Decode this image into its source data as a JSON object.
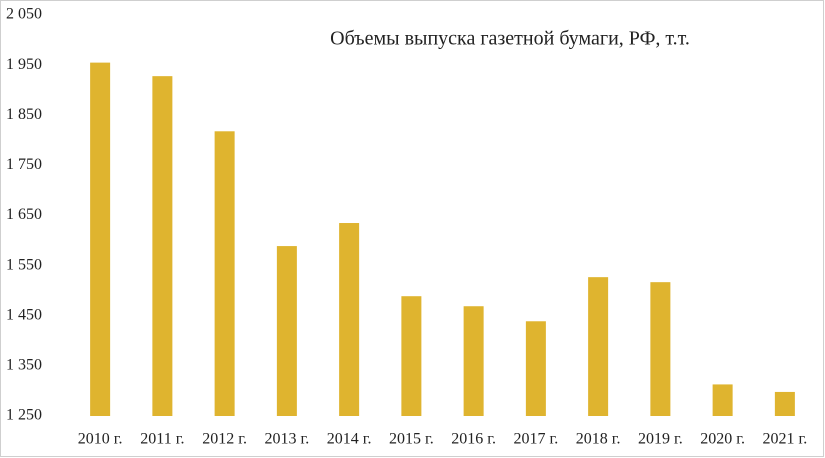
{
  "chart_data": {
    "type": "bar",
    "title": "Объемы выпуска газетной бумаги, РФ, т.т.",
    "categories": [
      "2010 г.",
      "2011 г.",
      "2012 г.",
      "2013 г.",
      "2014 г.",
      "2015 г.",
      "2016 г.",
      "2017 г.",
      "2018 г.",
      "2019 г.",
      "2020 г.",
      "2021 г."
    ],
    "values": [
      1955,
      1928,
      1818,
      1589,
      1635,
      1489,
      1469,
      1439,
      1527,
      1517,
      1313,
      1298
    ],
    "color": "#dfb42f",
    "ylim": [
      1250,
      2050
    ],
    "yticks": [
      {
        "value": 1250,
        "label": "1 250"
      },
      {
        "value": 1350,
        "label": "1 350"
      },
      {
        "value": 1450,
        "label": "1 450"
      },
      {
        "value": 1550,
        "label": "1 550"
      },
      {
        "value": 1650,
        "label": "1 650"
      },
      {
        "value": 1750,
        "label": "1 750"
      },
      {
        "value": 1850,
        "label": "1 850"
      },
      {
        "value": 1950,
        "label": "1 950"
      },
      {
        "value": 2050,
        "label": "2 050"
      }
    ],
    "grid": false
  }
}
